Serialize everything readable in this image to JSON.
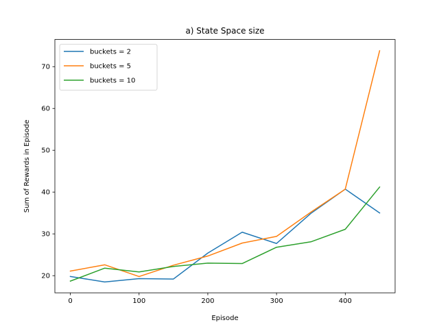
{
  "chart_data": {
    "type": "line",
    "title": "a) State Space size",
    "xlabel": "Episode",
    "ylabel": "Sum of Rewards in Episode",
    "xlim": [
      -22.5,
      472.5
    ],
    "ylim": [
      15.9,
      76.5
    ],
    "xticks": [
      0,
      100,
      200,
      300,
      400
    ],
    "yticks": [
      20,
      30,
      40,
      50,
      60,
      70
    ],
    "grid": false,
    "legend_position": "upper-left",
    "x": [
      0,
      50,
      100,
      150,
      200,
      250,
      300,
      350,
      400,
      450
    ],
    "series": [
      {
        "name": "buckets = 2",
        "color": "#1f77b4",
        "values": [
          19.8,
          18.5,
          19.3,
          19.2,
          25.4,
          30.4,
          27.7,
          34.9,
          40.7,
          35.0
        ]
      },
      {
        "name": "buckets = 5",
        "color": "#ff7f0e",
        "values": [
          21.1,
          22.6,
          19.8,
          22.5,
          24.7,
          27.8,
          29.4,
          35.2,
          40.7,
          73.8
        ]
      },
      {
        "name": "buckets = 10",
        "color": "#2ca02c",
        "values": [
          18.7,
          21.8,
          20.9,
          22.2,
          23.0,
          22.9,
          26.8,
          28.1,
          31.1,
          41.2
        ]
      }
    ]
  }
}
